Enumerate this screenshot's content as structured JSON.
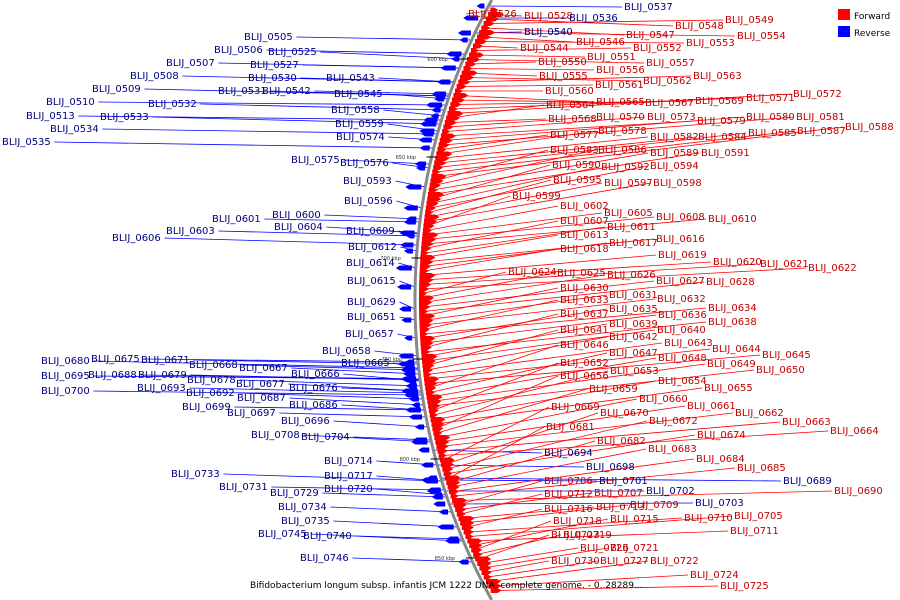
{
  "caption": "Bifidobacterium longum subsp. infantis JCM 1222 DNA, complete genome. - 0..28289...",
  "legend": [
    {
      "label": "Forward",
      "color": "#ff0000"
    },
    {
      "label": "Reverse",
      "color": "#0000ff"
    }
  ],
  "colors": {
    "forward": "#ff0000",
    "reverse": "#0000ff",
    "forward_text": "#c00000",
    "reverse_text": "#000080",
    "backbone": "#888888"
  },
  "ticks": [
    "600 kbp",
    "650 kbp",
    "700 kbp",
    "750 kbp",
    "800 kbp",
    "850 kbp"
  ],
  "reverse_genes": [
    "BLIJ_0505",
    "BLIJ_0506",
    "BLIJ_0507",
    "BLIJ_0508",
    "BLIJ_0509",
    "BLIJ_0510",
    "BLIJ_0513",
    "BLIJ_0534",
    "BLIJ_0535",
    "BLIJ_0525",
    "BLIJ_0527",
    "BLIJ_0530",
    "BLIJ_0531",
    "BLIJ_0532",
    "BLIJ_0533",
    "BLIJ_0542",
    "BLIJ_0543",
    "BLIJ_0545",
    "BLIJ_0558",
    "BLIJ_0559",
    "BLIJ_0574",
    "BLIJ_0575",
    "BLIJ_0576",
    "BLIJ_0593",
    "BLIJ_0596",
    "BLIJ_0601",
    "BLIJ_0600",
    "BLIJ_0603",
    "BLIJ_0604",
    "BLIJ_0606",
    "BLIJ_0609",
    "BLIJ_0612",
    "BLIJ_0614",
    "BLIJ_0615",
    "BLIJ_0629",
    "BLIJ_0651",
    "BLIJ_0657",
    "BLIJ_0658",
    "BLIJ_0665",
    "BLIJ_0680",
    "BLIJ_0675",
    "BLIJ_0671",
    "BLIJ_0668",
    "BLIJ_0667",
    "BLIJ_0666",
    "BLIJ_0695",
    "BLIJ_0688",
    "BLIJ_0679",
    "BLIJ_0678",
    "BLIJ_0677",
    "BLIJ_0676",
    "BLIJ_0700",
    "BLIJ_0693",
    "BLIJ_0692",
    "BLIJ_0687",
    "BLIJ_0699",
    "BLIJ_0697",
    "BLIJ_0686",
    "BLIJ_0696",
    "BLIJ_0708",
    "BLIJ_0704",
    "BLIJ_0714",
    "BLIJ_0717",
    "BLIJ_0720",
    "BLIJ_0733",
    "BLIJ_0731",
    "BLIJ_0729",
    "BLIJ_0734",
    "BLIJ_0735",
    "BLIJ_0745",
    "BLIJ_0740",
    "BLIJ_0746",
    "BLIJ_0537",
    "BLIJ_0536",
    "BLIJ_0540",
    "BLIJ_0694",
    "BLIJ_0698",
    "BLIJ_0701",
    "BLIJ_0702",
    "BLIJ_0703",
    "BLIJ_0689"
  ],
  "forward_genes": [
    "BLIJ_0526",
    "BLIJ_0528",
    "BLIJ_0548",
    "BLIJ_0549",
    "BLIJ_0547",
    "BLIJ_0554",
    "BLIJ_0546",
    "BLIJ_0553",
    "BLIJ_0544",
    "BLIJ_0552",
    "BLIJ_0551",
    "BLIJ_0557",
    "BLIJ_0550",
    "BLIJ_0556",
    "BLIJ_0555",
    "BLIJ_0562",
    "BLIJ_0563",
    "BLIJ_0561",
    "BLIJ_0560",
    "BLIJ_0565",
    "BLIJ_0567",
    "BLIJ_0569",
    "BLIJ_0571",
    "BLIJ_0572",
    "BLIJ_0564",
    "BLIJ_0568",
    "BLIJ_0570",
    "BLIJ_0573",
    "BLIJ_0579",
    "BLIJ_0580",
    "BLIJ_0581",
    "BLIJ_0577",
    "BLIJ_0578",
    "BLIJ_0582",
    "BLIJ_0584",
    "BLIJ_0585",
    "BLIJ_0587",
    "BLIJ_0588",
    "BLIJ_0583",
    "BLIJ_0586",
    "BLIJ_0589",
    "BLIJ_0591",
    "BLIJ_0590",
    "BLIJ_0592",
    "BLIJ_0594",
    "BLIJ_0595",
    "BLIJ_0597",
    "BLIJ_0598",
    "BLIJ_0599",
    "BLIJ_0602",
    "BLIJ_0605",
    "BLIJ_0608",
    "BLIJ_0610",
    "BLIJ_0607",
    "BLIJ_0611",
    "BLIJ_0613",
    "BLIJ_0616",
    "BLIJ_0617",
    "BLIJ_0618",
    "BLIJ_0619",
    "BLIJ_0620",
    "BLIJ_0621",
    "BLIJ_0622",
    "BLIJ_0624",
    "BLIJ_0625",
    "BLIJ_0626",
    "BLIJ_0627",
    "BLIJ_0628",
    "BLIJ_0630",
    "BLIJ_0631",
    "BLIJ_0632",
    "BLIJ_0633",
    "BLIJ_0634",
    "BLIJ_0635",
    "BLIJ_0636",
    "BLIJ_0637",
    "BLIJ_0638",
    "BLIJ_0639",
    "BLIJ_0640",
    "BLIJ_0641",
    "BLIJ_0642",
    "BLIJ_0643",
    "BLIJ_0644",
    "BLIJ_0645",
    "BLIJ_0646",
    "BLIJ_0647",
    "BLIJ_0648",
    "BLIJ_0649",
    "BLIJ_0650",
    "BLIJ_0652",
    "BLIJ_0653",
    "BLIJ_0654",
    "BLIJ_0655",
    "BLIJ_0656",
    "BLIJ_0659",
    "BLIJ_0660",
    "BLIJ_0661",
    "BLIJ_0662",
    "BLIJ_0663",
    "BLIJ_0664",
    "BLIJ_0669",
    "BLIJ_0670",
    "BLIJ_0672",
    "BLIJ_0674",
    "BLIJ_0681",
    "BLIJ_0682",
    "BLIJ_0683",
    "BLIJ_0684",
    "BLIJ_0685",
    "BLIJ_0690",
    "BLIJ_0706",
    "BLIJ_0707",
    "BLIJ_0712",
    "BLIJ_0713",
    "BLIJ_0709",
    "BLIJ_0716",
    "BLIJ_0710",
    "BLIJ_0705",
    "BLIJ_0711",
    "BLIJ_0715",
    "BLIJ_0718",
    "BLIJ_0719",
    "BLIJ_0723",
    "BLIJ_0726",
    "BLIJ_0721",
    "BLIJ_0730",
    "BLIJ_0727",
    "BLIJ_0722",
    "BLIJ_0724",
    "BLIJ_0725"
  ]
}
